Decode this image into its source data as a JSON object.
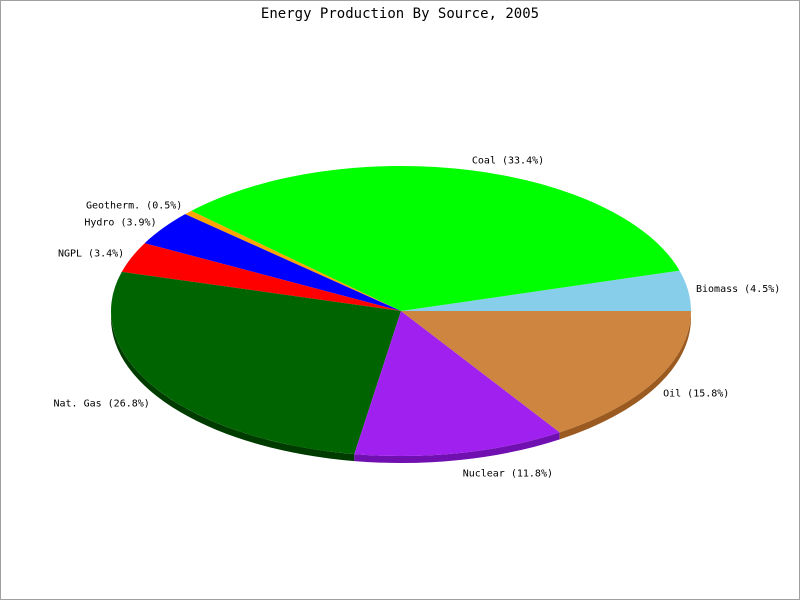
{
  "chart_data": {
    "type": "pie",
    "title": "Energy Production By Source, 2005",
    "style": "3d-tilted",
    "slices": [
      {
        "label": "Biomass (4.5%)",
        "name": "Biomass",
        "value": 4.5,
        "color": "#87ceeb",
        "side_color": "#6ba3bc"
      },
      {
        "label": "Coal (33.4%)",
        "name": "Coal",
        "value": 33.4,
        "color": "#00ff00",
        "side_color": "#00b400"
      },
      {
        "label": "Geotherm. (0.5%)",
        "name": "Geotherm.",
        "value": 0.5,
        "color": "#ffa500",
        "side_color": "#c07a00"
      },
      {
        "label": "Hydro (3.9%)",
        "name": "Hydro",
        "value": 3.9,
        "color": "#0000ff",
        "side_color": "#0000a8"
      },
      {
        "label": "NGPL (3.4%)",
        "name": "NGPL",
        "value": 3.4,
        "color": "#ff0000",
        "side_color": "#b00000"
      },
      {
        "label": "Nat. Gas (26.8%)",
        "name": "Nat. Gas",
        "value": 26.8,
        "color": "#006400",
        "side_color": "#003c00"
      },
      {
        "label": "Nuclear (11.8%)",
        "name": "Nuclear",
        "value": 11.8,
        "color": "#a020f0",
        "side_color": "#7010b0"
      },
      {
        "label": "Oil (15.8%)",
        "name": "Oil",
        "value": 15.8,
        "color": "#cd853f",
        "side_color": "#9a5a20"
      }
    ]
  }
}
